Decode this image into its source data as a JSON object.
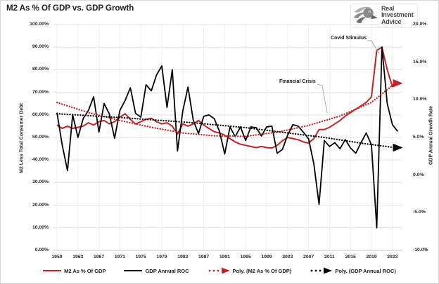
{
  "title": "M2 As % Of GDP vs. GDP Growth",
  "logo": {
    "icon": "eagle-icon",
    "line1": "Real",
    "line2": "Investment",
    "line3": "Advice"
  },
  "annotations": {
    "covid": "Covid Stimulus",
    "financial_crisis": "Financial Crisis"
  },
  "colors": {
    "red": "#C22326",
    "black": "#000000",
    "grid_horizontal": "#E2E2E2",
    "grid_vertical": "#F0F0F0",
    "baseline": "#C9C9C9",
    "annotation_line": "#A6A6A6",
    "logo_gray": "#8C8C8C"
  },
  "chart_data": {
    "type": "line",
    "title": "M2 As % Of GDP vs. GDP Growth",
    "grid": true,
    "legend_position": "bottom",
    "left_axis": {
      "label": "M2 Less Total Consumer Debt",
      "range": [
        0,
        100
      ],
      "ticks": [
        "100.00%",
        "90.00%",
        "80.00%",
        "70.00%",
        "60.00%",
        "50.00%",
        "40.00%",
        "30.00%",
        "20.00%",
        "10.00%",
        "0.00%"
      ]
    },
    "right_axis": {
      "label": "GDP Annual Growth Rate",
      "range": [
        -10,
        20
      ],
      "ticks": [
        "20.0%",
        "15.0%",
        "10.0%",
        "5.0%",
        "0.0%",
        "-5.0%",
        "-10.0%"
      ]
    },
    "x_axis": {
      "range": [
        1958.2,
        2024.9
      ],
      "ticks": [
        "1959",
        "1963",
        "1967",
        "1971",
        "1975",
        "1979",
        "1983",
        "1987",
        "1991",
        "1995",
        "1999",
        "2003",
        "2007",
        "2011",
        "2015",
        "2019",
        "2023"
      ]
    },
    "series": [
      {
        "id": "m2-pct-gdp",
        "name": "M2 As % Of GDP",
        "axis": "left",
        "style": "solid",
        "color": "#C22326",
        "width": 2,
        "x_start": 1959,
        "values": [
          55.5,
          54,
          55,
          54,
          54.5,
          55,
          56.5,
          55.5,
          57,
          57.5,
          56,
          57,
          59,
          60.5,
          58,
          56,
          57,
          58,
          58.5,
          57,
          56,
          56.5,
          55,
          51.5,
          56,
          55,
          56,
          57.5,
          55.5,
          54,
          52.5,
          52,
          51,
          49.5,
          48,
          47,
          46.5,
          46,
          45.5,
          46,
          45.5,
          45.3,
          46.5,
          48.5,
          50,
          49.5,
          49,
          48,
          47.5,
          49.5,
          53.5,
          53.5,
          54.5,
          56,
          57.5,
          59.5,
          61,
          62.5,
          64,
          65.5,
          68,
          88.5,
          90,
          80,
          72.5,
          75
        ]
      },
      {
        "id": "gdp-annual-roc",
        "name": "GDP Annual ROC",
        "axis": "right",
        "style": "solid",
        "color": "#000000",
        "width": 1.8,
        "x_start": 1959,
        "values": [
          8.3,
          4,
          0.6,
          8,
          5,
          7.5,
          8.6,
          10.4,
          5.7,
          9.5,
          8.1,
          4.9,
          8.6,
          9.9,
          11.6,
          8.2,
          7.7,
          12,
          11.2,
          13.3,
          14.5,
          9,
          14,
          3.2,
          8.5,
          11.7,
          7.3,
          5.5,
          7.8,
          8,
          7.5,
          5.8,
          2.8,
          6.4,
          5.1,
          6.4,
          4.6,
          6.4,
          6.3,
          5.2,
          6.4,
          6.5,
          2.9,
          3.4,
          5.3,
          6.7,
          6.5,
          5.7,
          4.8,
          1.5,
          -3.9,
          4.6,
          3.8,
          4.3,
          3.5,
          4.7,
          3.6,
          2.9,
          4.3,
          5.6,
          4,
          -7,
          17,
          9.5,
          6.7,
          5.8
        ]
      },
      {
        "id": "poly-m2",
        "name": "Poly. (M2 As % Of GDP)",
        "axis": "left",
        "style": "dotted",
        "color": "#C22326",
        "arrow": true,
        "x": [
          1959,
          1965,
          1971,
          1977,
          1983,
          1989,
          1995,
          2001,
          2007,
          2013,
          2019,
          2023.5
        ],
        "values": [
          65.5,
          61,
          57.5,
          54.5,
          52,
          50.7,
          50.5,
          52.3,
          55.3,
          59.5,
          65.5,
          74
        ]
      },
      {
        "id": "poly-gdp",
        "name": "Poly. (GDP Annual ROC)",
        "axis": "right",
        "style": "dotted",
        "color": "#000000",
        "arrow": true,
        "x": [
          1959,
          1972,
          1985,
          1995,
          2003,
          2010,
          2017,
          2023.5
        ],
        "values": [
          8.15,
          7.6,
          6.95,
          6.3,
          5.6,
          5,
          4.25,
          3.65
        ]
      }
    ]
  }
}
